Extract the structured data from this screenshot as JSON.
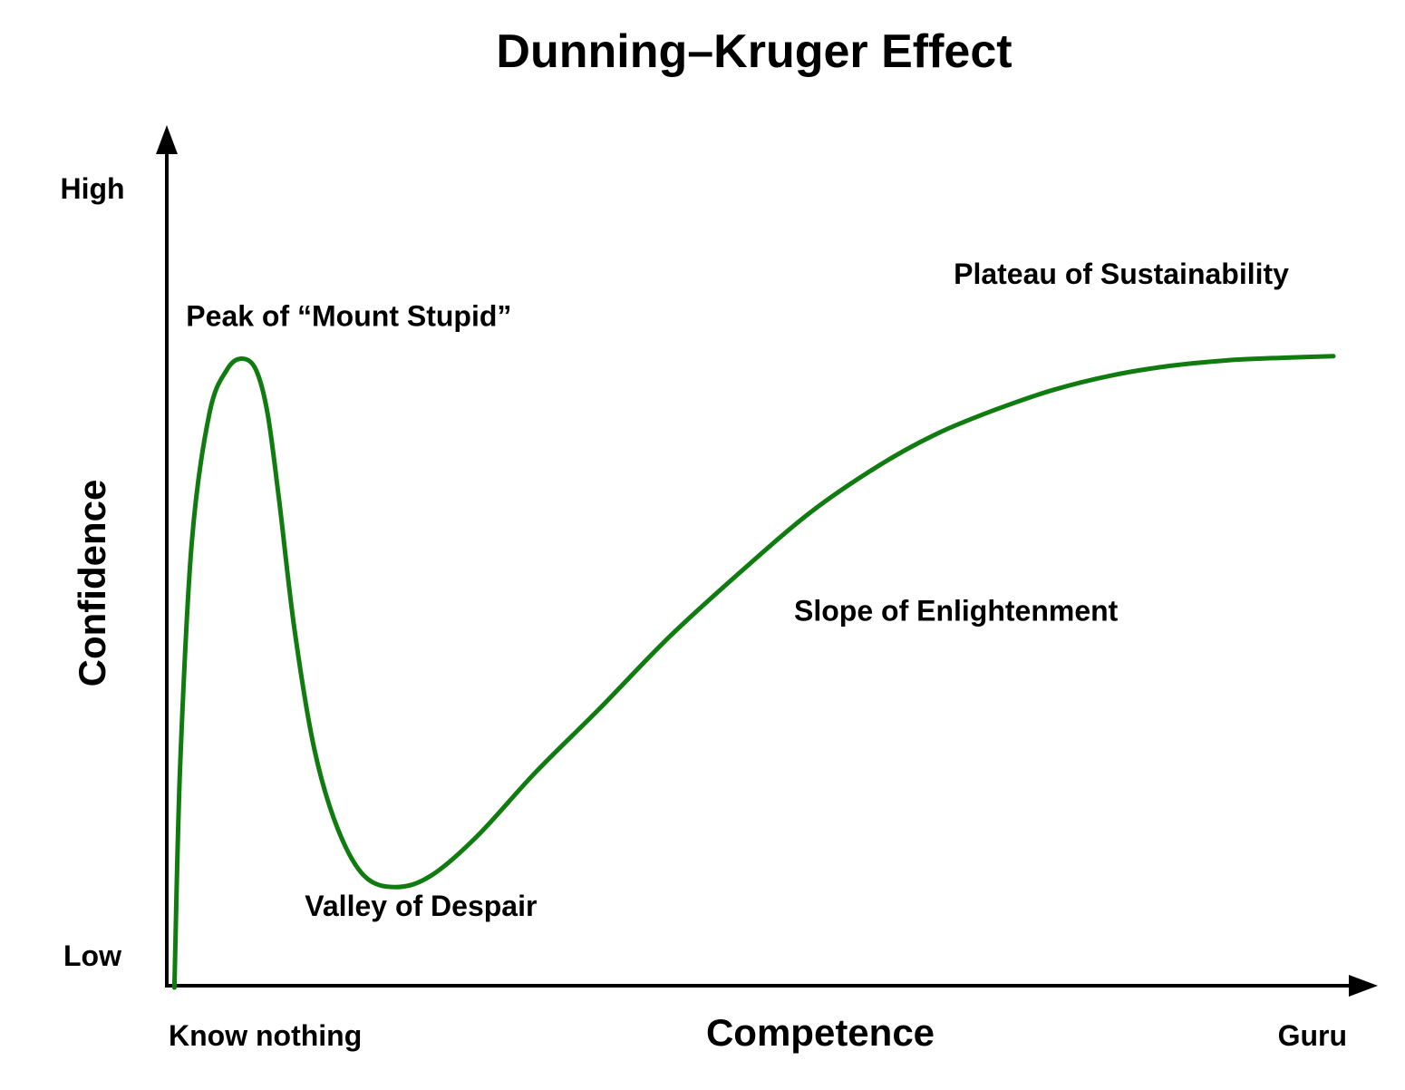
{
  "chart_data": {
    "type": "line",
    "title": "Dunning–Kruger Effect",
    "xlabel": "Competence",
    "ylabel": "Confidence",
    "xlim": [
      0,
      100
    ],
    "ylim": [
      0,
      100
    ],
    "x_tick_labels": {
      "min": "Know nothing",
      "max": "Guru"
    },
    "y_tick_labels": {
      "min": "Low",
      "max": "High"
    },
    "grid": false,
    "series": [
      {
        "color": "#107c10",
        "x": [
          0.5,
          1.0,
          2.0,
          3.5,
          5.0,
          6.3,
          7.5,
          8.5,
          9.5,
          10.8,
          12.5,
          14.5,
          16.8,
          19.5,
          22.5,
          26.5,
          31.5,
          37.0,
          43.0,
          49.0,
          55.0,
          61.0,
          66.0,
          71.0,
          76.0,
          81.0,
          86.0,
          91.0,
          95.5,
          100.0
        ],
        "y": [
          0.0,
          28.0,
          56.0,
          72.0,
          77.5,
          78.9,
          77.5,
          72.0,
          61.0,
          45.0,
          30.0,
          20.0,
          14.0,
          12.6,
          14.0,
          19.0,
          27.0,
          35.0,
          44.0,
          52.0,
          59.5,
          65.5,
          69.5,
          72.5,
          75.0,
          76.8,
          78.0,
          78.7,
          79.0,
          79.2
        ]
      }
    ],
    "annotations": [
      {
        "id": "peak",
        "text": "Peak of “Mount Stupid”",
        "x": 1.5,
        "y": 83.0,
        "anchor": "start"
      },
      {
        "id": "valley",
        "text": "Valley of Despair",
        "x": 11.7,
        "y": 9.0,
        "anchor": "start"
      },
      {
        "id": "slope",
        "text": "Slope of Enlightenment",
        "x": 53.7,
        "y": 46.0,
        "anchor": "start"
      },
      {
        "id": "plateau",
        "text": "Plateau of Sustainability",
        "x": 67.4,
        "y": 88.3,
        "anchor": "start"
      }
    ]
  }
}
